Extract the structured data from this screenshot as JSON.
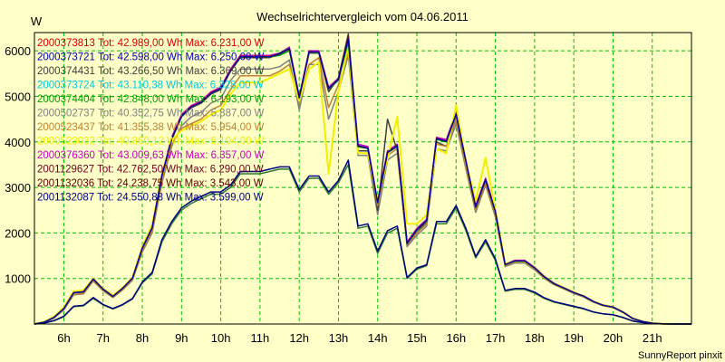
{
  "chart_data": {
    "type": "line",
    "title": "Wechselrichtervergleich vom 04.06.2011",
    "ylabel": "W",
    "footer": "SunnyReport pinxit",
    "x_ticks": [
      "6h",
      "7h",
      "8h",
      "9h",
      "10h",
      "11h",
      "12h",
      "13h",
      "14h",
      "15h",
      "16h",
      "17h",
      "18h",
      "19h",
      "20h",
      "21h"
    ],
    "x_range": [
      5.25,
      22.0
    ],
    "y_ticks": [
      1000,
      2000,
      3000,
      4000,
      5000,
      6000
    ],
    "ylim": [
      0,
      6400
    ],
    "grid": true,
    "legend_position": "top-left",
    "legend": [
      {
        "text": "2000373813 Tot: 42.989,00 Wh Max: 6.231,00 W",
        "color": "#d00000"
      },
      {
        "text": "2000373721 Tot: 42.598,00 Wh Max: 6.250,00 W",
        "color": "#0000b0"
      },
      {
        "text": "2000374431 Tot: 43.266,50 Wh Max: 6.369,00 W",
        "color": "#404040"
      },
      {
        "text": "2000373724 Tot: 43.110,38 Wh Max: 6.328,00 W",
        "color": "#00c8e0"
      },
      {
        "text": "2000374404 Tot: 42.848,00 Wh Max: 6.193,00 W",
        "color": "#00a000"
      },
      {
        "text": "2000502737 Tot: 40.352,75 Wh Max: 5.887,00 W",
        "color": "#808080"
      },
      {
        "text": "2000523437 Tot: 41.355,38 Wh Max: 5.954,00 W",
        "color": "#c08030"
      },
      {
        "text": "2000523032 Tot: 40.860,12 Wh Max: 6.104,00 W",
        "color": "#f0f000"
      },
      {
        "text": "2000376360 Tot: 43.009,63 Wh Max: 6.357,00 W",
        "color": "#c000c0"
      },
      {
        "text": "2001129627 Tot: 42.762,50 Wh Max: 6.290,00 W",
        "color": "#700020"
      },
      {
        "text": "2001132036 Tot: 24.238,75 Wh Max: 3.543,00 W",
        "color": "#600000"
      },
      {
        "text": "2001132087 Tot: 24.550,88 Wh Max: 3.599,00 W",
        "color": "#000080"
      }
    ],
    "x": [
      5.25,
      5.5,
      5.75,
      6.0,
      6.25,
      6.5,
      6.75,
      7.0,
      7.25,
      7.5,
      7.75,
      8.0,
      8.25,
      8.5,
      8.75,
      9.0,
      9.25,
      9.5,
      9.75,
      10.0,
      10.25,
      10.5,
      10.75,
      11.0,
      11.25,
      11.5,
      11.75,
      12.0,
      12.25,
      12.5,
      12.75,
      13.0,
      13.25,
      13.5,
      13.75,
      14.0,
      14.25,
      14.5,
      14.75,
      15.0,
      15.25,
      15.5,
      15.75,
      16.0,
      16.25,
      16.5,
      16.75,
      17.0,
      17.25,
      17.5,
      17.75,
      18.0,
      18.25,
      18.5,
      18.75,
      19.0,
      19.25,
      19.5,
      19.75,
      20.0,
      20.25,
      20.5,
      20.75,
      21.0,
      21.25,
      21.5,
      21.75,
      22.0
    ],
    "series": [
      {
        "color": "#c000c0",
        "width": 1.5,
        "values": [
          0,
          40,
          150,
          350,
          700,
          720,
          1000,
          780,
          620,
          800,
          1020,
          1700,
          2150,
          3300,
          4100,
          4600,
          4800,
          4900,
          5100,
          5200,
          5600,
          5900,
          5900,
          5900,
          5900,
          5950,
          6080,
          5000,
          6000,
          6000,
          5200,
          5400,
          6350,
          3950,
          3900,
          2700,
          3800,
          3950,
          1800,
          2100,
          2300,
          4100,
          4050,
          4650,
          3600,
          2600,
          3200,
          2500,
          1320,
          1400,
          1400,
          1250,
          1050,
          900,
          800,
          700,
          620,
          500,
          420,
          380,
          270,
          130,
          60,
          20,
          5,
          0,
          0,
          0
        ]
      },
      {
        "color": "#00c8e0",
        "width": 1.5,
        "values": [
          0,
          40,
          140,
          330,
          680,
          700,
          980,
          760,
          600,
          780,
          1000,
          1650,
          2100,
          3250,
          4050,
          4550,
          4750,
          4850,
          5050,
          5150,
          5550,
          5850,
          5850,
          5850,
          5850,
          5950,
          6050,
          4950,
          5950,
          5950,
          5150,
          5350,
          6300,
          3900,
          3850,
          2650,
          3750,
          3900,
          1750,
          2050,
          2250,
          4050,
          4000,
          4600,
          3550,
          2550,
          3150,
          2450,
          1300,
          1380,
          1380,
          1230,
          1030,
          880,
          790,
          690,
          610,
          490,
          410,
          370,
          260,
          120,
          55,
          18,
          4,
          0,
          0,
          0
        ]
      },
      {
        "color": "#d00000",
        "width": 1.2,
        "values": [
          0,
          40,
          145,
          340,
          690,
          710,
          990,
          770,
          610,
          790,
          1010,
          1680,
          2120,
          3280,
          4080,
          4580,
          4780,
          4880,
          5080,
          5180,
          5580,
          5880,
          5880,
          5880,
          5880,
          5940,
          6060,
          4980,
          5980,
          5980,
          5180,
          5380,
          6230,
          3920,
          3870,
          2680,
          3780,
          3920,
          1780,
          2080,
          2280,
          4080,
          4020,
          4620,
          3580,
          2580,
          3180,
          2480,
          1310,
          1390,
          1390,
          1240,
          1040,
          890,
          795,
          695,
          615,
          495,
          415,
          375,
          265,
          125,
          58,
          19,
          4,
          0,
          0,
          0
        ]
      },
      {
        "color": "#808080",
        "width": 1.5,
        "values": [
          0,
          35,
          130,
          310,
          640,
          660,
          940,
          730,
          580,
          750,
          960,
          1580,
          2000,
          3100,
          3900,
          4350,
          4550,
          4650,
          4850,
          4950,
          5350,
          5600,
          5600,
          5600,
          5600,
          5650,
          5800,
          4700,
          5700,
          5700,
          4500,
          5100,
          5900,
          3700,
          3700,
          2400,
          3600,
          3750,
          1700,
          1950,
          2150,
          3850,
          3800,
          4400,
          3400,
          2450,
          3050,
          2350,
          1260,
          1340,
          1340,
          1190,
          1000,
          860,
          770,
          670,
          590,
          480,
          400,
          360,
          255,
          120,
          55,
          18,
          4,
          0,
          0,
          0
        ]
      },
      {
        "color": "#404040",
        "width": 1.5,
        "values": [
          0,
          40,
          150,
          340,
          690,
          700,
          980,
          760,
          600,
          780,
          1000,
          1650,
          2100,
          3250,
          4050,
          4550,
          4750,
          4850,
          5050,
          5150,
          5550,
          5850,
          5850,
          5850,
          5850,
          5950,
          6050,
          4950,
          5950,
          5950,
          5100,
          5400,
          6370,
          3800,
          3800,
          2500,
          4500,
          3800,
          1750,
          2000,
          2250,
          4000,
          3900,
          4500,
          3500,
          2500,
          3100,
          2450,
          1300,
          1380,
          1380,
          1230,
          1030,
          880,
          790,
          690,
          610,
          490,
          410,
          370,
          260,
          120,
          55,
          18,
          4,
          0,
          0,
          0
        ]
      },
      {
        "color": "#c08030",
        "width": 1.5,
        "values": [
          0,
          40,
          140,
          330,
          650,
          670,
          950,
          740,
          590,
          760,
          980,
          1600,
          2050,
          3150,
          3950,
          4300,
          4400,
          4500,
          4700,
          4800,
          5150,
          5450,
          5450,
          5450,
          5450,
          5550,
          5700,
          4850,
          5700,
          5850,
          4750,
          5250,
          5950,
          3750,
          3750,
          2600,
          3700,
          3850,
          1750,
          2000,
          2200,
          3950,
          3900,
          4500,
          3450,
          2500,
          3100,
          2400,
          1280,
          1360,
          1360,
          1210,
          1010,
          870,
          780,
          680,
          600,
          485,
          405,
          365,
          258,
          118,
          54,
          17,
          4,
          0,
          0,
          0
        ]
      },
      {
        "color": "#f0f000",
        "width": 2,
        "values": [
          0,
          50,
          160,
          370,
          720,
          740,
          1000,
          780,
          630,
          800,
          1020,
          1700,
          2180,
          3300,
          4050,
          4250,
          4350,
          4450,
          4600,
          4700,
          5050,
          5300,
          5300,
          5300,
          5400,
          5500,
          5600,
          4900,
          5600,
          5750,
          3300,
          5100,
          6100,
          3750,
          3750,
          2700,
          3650,
          4550,
          2200,
          2200,
          2400,
          3850,
          3750,
          4800,
          3550,
          2700,
          3650,
          2500,
          1320,
          1380,
          1380,
          1240,
          1040,
          890,
          800,
          700,
          610,
          495,
          415,
          375,
          265,
          125,
          58,
          19,
          4,
          0,
          0,
          0
        ]
      },
      {
        "color": "#00a000",
        "width": 1.5,
        "values": [
          0,
          40,
          145,
          335,
          685,
          705,
          985,
          765,
          605,
          785,
          1005,
          1660,
          2110,
          3260,
          4060,
          4560,
          4760,
          4860,
          5060,
          5160,
          5560,
          5860,
          5860,
          5860,
          5860,
          5900,
          6000,
          4960,
          5960,
          5960,
          5160,
          5360,
          6190,
          3890,
          3860,
          2660,
          3760,
          3900,
          1760,
          2060,
          2260,
          4060,
          4000,
          4600,
          3560,
          2560,
          3160,
          2460,
          1300,
          1380,
          1380,
          1230,
          1030,
          880,
          790,
          690,
          610,
          490,
          410,
          370,
          260,
          120,
          55,
          18,
          4,
          0,
          0,
          0
        ]
      },
      {
        "color": "#700020",
        "width": 1.5,
        "values": [
          0,
          40,
          145,
          340,
          690,
          705,
          985,
          765,
          605,
          785,
          1005,
          1665,
          2115,
          3265,
          4065,
          4565,
          4765,
          4865,
          5065,
          5165,
          5565,
          5865,
          5865,
          5865,
          5865,
          5930,
          6040,
          4970,
          5970,
          5970,
          5170,
          5370,
          6290,
          3910,
          3860,
          2670,
          3770,
          3910,
          1770,
          2070,
          2270,
          4070,
          4010,
          4610,
          3570,
          2570,
          3170,
          2470,
          1305,
          1385,
          1385,
          1235,
          1035,
          885,
          792,
          692,
          612,
          492,
          412,
          372,
          262,
          122,
          56,
          18,
          4,
          0,
          0,
          0
        ]
      },
      {
        "color": "#0000b0",
        "width": 1.2,
        "values": [
          0,
          40,
          145,
          338,
          688,
          708,
          988,
          768,
          608,
          788,
          1008,
          1670,
          2118,
          3270,
          4070,
          4570,
          4770,
          4870,
          5070,
          5170,
          5570,
          5870,
          5870,
          5870,
          5870,
          5930,
          6050,
          4975,
          5975,
          5975,
          5175,
          5375,
          6250,
          3915,
          3865,
          2675,
          3775,
          3915,
          1775,
          2075,
          2275,
          4075,
          4015,
          4615,
          3575,
          2575,
          3175,
          2475,
          1305,
          1385,
          1385,
          1235,
          1035,
          885,
          792,
          692,
          612,
          492,
          412,
          372,
          262,
          122,
          56,
          18,
          4,
          0,
          0,
          0
        ]
      },
      {
        "color": "#2e7d32",
        "width": 1.5,
        "values": [
          0,
          20,
          70,
          160,
          380,
          400,
          560,
          420,
          330,
          420,
          550,
          900,
          1100,
          1800,
          2200,
          2500,
          2650,
          2750,
          2850,
          2850,
          3000,
          3300,
          3300,
          3300,
          3350,
          3400,
          3400,
          2900,
          3200,
          3200,
          2850,
          3100,
          3500,
          2100,
          2150,
          1550,
          2000,
          2100,
          1000,
          1200,
          1280,
          2200,
          2200,
          2550,
          2050,
          1450,
          1800,
          1400,
          720,
          760,
          760,
          680,
          560,
          480,
          430,
          380,
          330,
          260,
          220,
          200,
          140,
          65,
          30,
          10,
          2,
          0,
          0,
          0
        ]
      },
      {
        "color": "#000080",
        "width": 1.5,
        "values": [
          0,
          22,
          75,
          170,
          390,
          410,
          580,
          430,
          340,
          430,
          560,
          920,
          1130,
          1850,
          2250,
          2550,
          2700,
          2800,
          2900,
          2900,
          3050,
          3350,
          3350,
          3350,
          3400,
          3450,
          3450,
          2950,
          3250,
          3250,
          2900,
          3150,
          3600,
          2150,
          2200,
          1600,
          2050,
          2150,
          1020,
          1230,
          1300,
          2250,
          2250,
          2600,
          2100,
          1480,
          1850,
          1430,
          740,
          780,
          780,
          700,
          575,
          490,
          440,
          390,
          340,
          265,
          225,
          205,
          145,
          68,
          32,
          11,
          2,
          0,
          0,
          0
        ]
      }
    ]
  }
}
